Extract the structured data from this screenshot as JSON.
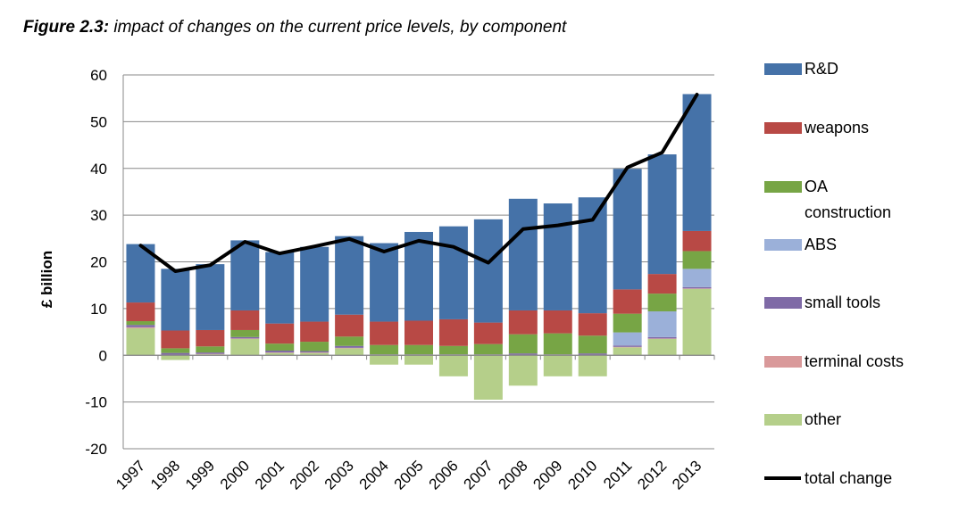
{
  "figure": {
    "label": "Figure 2.3:",
    "caption": "impact of changes on the current price levels, by component"
  },
  "chart_data": {
    "type": "bar",
    "stacked": true,
    "title": "Figure 2.3: impact of changes on the current price levels, by component",
    "xlabel": "",
    "ylabel": "£ billion",
    "ylim": [
      -20,
      60
    ],
    "yticks": [
      -20,
      -10,
      0,
      10,
      20,
      30,
      40,
      50,
      60
    ],
    "grid": true,
    "legend_position": "right",
    "categories": [
      "1997",
      "1998",
      "1999",
      "2000",
      "2001",
      "2002",
      "2003",
      "2004",
      "2005",
      "2006",
      "2007",
      "2008",
      "2009",
      "2010",
      "2011",
      "2012",
      "2013"
    ],
    "series": [
      {
        "name": "other",
        "color": "#b5cf8a",
        "values": [
          5.8,
          -1.0,
          0.2,
          3.5,
          0.5,
          0.5,
          1.5,
          -2.0,
          -2.0,
          -4.5,
          -9.5,
          -6.5,
          -4.5,
          -4.5,
          1.7,
          3.5,
          14.2
        ]
      },
      {
        "name": "terminal costs",
        "color": "#d9999a",
        "values": [
          0.2,
          0.1,
          0.1,
          0.1,
          0.1,
          0.1,
          0.1,
          0.1,
          0.1,
          0.1,
          0.1,
          0.1,
          0.1,
          0.1,
          0.1,
          0.1,
          0.1
        ]
      },
      {
        "name": "small tools",
        "color": "#7f6aa6",
        "values": [
          0.5,
          0.4,
          0.3,
          0.3,
          0.4,
          0.3,
          0.4,
          0.1,
          0.1,
          0.1,
          0.1,
          0.3,
          0.1,
          0.3,
          0.3,
          0.3,
          0.3
        ]
      },
      {
        "name": "ABS",
        "color": "#9bb0d9",
        "values": [
          0.0,
          0.0,
          0.0,
          0.0,
          0.0,
          0.0,
          0.0,
          0.0,
          0.0,
          0.0,
          0.0,
          0.0,
          0.0,
          0.0,
          2.8,
          5.5,
          3.9
        ]
      },
      {
        "name": "OA construction",
        "color": "#77a545",
        "values": [
          0.8,
          1.0,
          1.3,
          1.5,
          1.5,
          2.0,
          2.0,
          2.0,
          2.0,
          1.8,
          2.2,
          4.1,
          4.5,
          3.8,
          4.0,
          3.8,
          3.8
        ]
      },
      {
        "name": "weapons",
        "color": "#b84945",
        "values": [
          4.0,
          3.8,
          3.5,
          4.2,
          4.3,
          4.3,
          4.7,
          5.0,
          5.2,
          5.7,
          4.6,
          5.1,
          4.9,
          4.8,
          5.2,
          4.2,
          4.3
        ]
      },
      {
        "name": "R&D",
        "color": "#4572a8",
        "values": [
          12.5,
          13.2,
          14.1,
          15.0,
          15.3,
          16.0,
          16.8,
          16.8,
          19.0,
          19.9,
          22.1,
          23.9,
          22.9,
          24.8,
          25.8,
          25.6,
          29.3
        ]
      }
    ],
    "line_series": {
      "name": "total change",
      "color": "#000000",
      "values": [
        23.5,
        18.0,
        19.3,
        24.3,
        21.8,
        23.3,
        24.9,
        22.2,
        24.5,
        23.2,
        19.8,
        27.0,
        27.8,
        29.0,
        40.2,
        43.4,
        55.8
      ]
    },
    "legend_order": [
      "R&D",
      "weapons",
      "OA construction",
      "ABS",
      "small tools",
      "terminal costs",
      "other",
      "total change"
    ],
    "legend_labels": {
      "R&D": [
        "R&D"
      ],
      "weapons": [
        "weapons"
      ],
      "OA construction": [
        "OA",
        "construction"
      ],
      "ABS": [
        "ABS"
      ],
      "small tools": [
        "small tools"
      ],
      "terminal costs": [
        "terminal costs"
      ],
      "other": [
        "other"
      ],
      "total change": [
        "total change"
      ]
    }
  }
}
